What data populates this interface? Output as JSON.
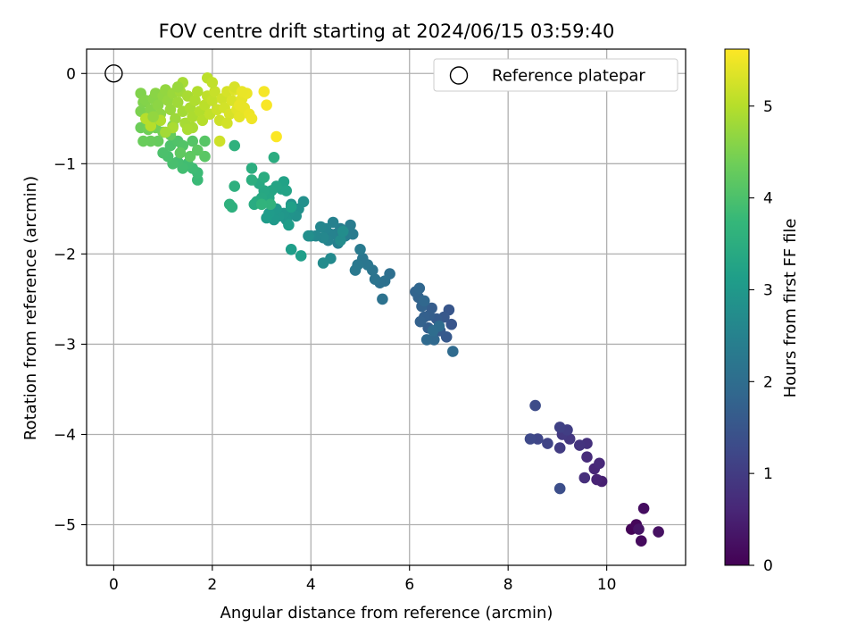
{
  "chart_data": {
    "type": "scatter",
    "title": "FOV centre drift starting at 2024/06/15 03:59:40",
    "xlabel": "Angular distance from reference (arcmin)",
    "ylabel": "Rotation from reference (arcmin)",
    "xlim": [
      -0.55,
      11.6
    ],
    "ylim": [
      -5.45,
      0.27
    ],
    "xticks": [
      0,
      2,
      4,
      6,
      8,
      10
    ],
    "yticks": [
      0,
      -1,
      -2,
      -3,
      -4,
      -5
    ],
    "x_tick_labels": [
      "0",
      "2",
      "4",
      "6",
      "8",
      "10"
    ],
    "y_tick_labels": [
      "0",
      "−1",
      "−2",
      "−3",
      "−4",
      "−5"
    ],
    "grid": true,
    "legend": {
      "placement": "top-right",
      "entries": [
        "Reference platepar"
      ]
    },
    "reference_point": {
      "x": 0,
      "y": 0
    },
    "colorbar": {
      "label": "Hours from first FF file",
      "colormap": "viridis",
      "range": [
        0,
        5.62
      ],
      "ticks": [
        0,
        1,
        2,
        3,
        4,
        5
      ],
      "tick_labels": [
        "0",
        "1",
        "2",
        "3",
        "4",
        "5"
      ]
    },
    "colormap_stops": [
      "#440154",
      "#482878",
      "#3e4989",
      "#31688e",
      "#26828e",
      "#1f9e89",
      "#35b779",
      "#6ece58",
      "#b5de2b",
      "#fde725"
    ],
    "points": [
      [
        10.5,
        -5.05,
        0.05
      ],
      [
        10.6,
        -5.0,
        0.1
      ],
      [
        10.7,
        -5.18,
        0.15
      ],
      [
        10.75,
        -4.82,
        0.2
      ],
      [
        11.05,
        -5.08,
        0.25
      ],
      [
        10.65,
        -5.05,
        0.3
      ],
      [
        9.9,
        -4.52,
        0.5
      ],
      [
        9.8,
        -4.5,
        0.55
      ],
      [
        9.75,
        -4.38,
        0.6
      ],
      [
        9.85,
        -4.32,
        0.65
      ],
      [
        9.6,
        -4.25,
        0.7
      ],
      [
        9.55,
        -4.48,
        0.75
      ],
      [
        9.6,
        -4.1,
        0.8
      ],
      [
        9.45,
        -4.12,
        0.85
      ],
      [
        9.25,
        -4.05,
        0.9
      ],
      [
        9.1,
        -4.0,
        0.95
      ],
      [
        9.05,
        -4.15,
        1.0
      ],
      [
        9.2,
        -3.95,
        1.05
      ],
      [
        9.05,
        -3.92,
        1.1
      ],
      [
        8.8,
        -4.1,
        1.15
      ],
      [
        8.6,
        -4.05,
        1.2
      ],
      [
        8.45,
        -4.05,
        1.25
      ],
      [
        8.55,
        -3.68,
        1.3
      ],
      [
        9.05,
        -4.6,
        1.35
      ],
      [
        6.85,
        -2.78,
        1.5
      ],
      [
        6.8,
        -2.62,
        1.52
      ],
      [
        6.7,
        -2.7,
        1.55
      ],
      [
        6.75,
        -2.92,
        1.58
      ],
      [
        6.62,
        -2.85,
        1.6
      ],
      [
        6.55,
        -2.72,
        1.62
      ],
      [
        6.45,
        -2.6,
        1.65
      ],
      [
        6.4,
        -2.68,
        1.68
      ],
      [
        6.38,
        -2.82,
        1.7
      ],
      [
        6.3,
        -2.7,
        1.72
      ],
      [
        6.22,
        -2.75,
        1.75
      ],
      [
        6.25,
        -2.58,
        1.78
      ],
      [
        6.18,
        -2.48,
        1.8
      ],
      [
        6.12,
        -2.42,
        1.82
      ],
      [
        6.2,
        -2.38,
        1.85
      ],
      [
        6.3,
        -2.52,
        1.88
      ],
      [
        6.5,
        -2.95,
        1.9
      ],
      [
        6.35,
        -2.95,
        1.92
      ],
      [
        6.88,
        -3.08,
        1.95
      ],
      [
        6.6,
        -2.8,
        1.98
      ],
      [
        6.48,
        -2.85,
        2.0
      ],
      [
        5.6,
        -2.22,
        2.05
      ],
      [
        5.5,
        -2.3,
        2.08
      ],
      [
        5.4,
        -2.32,
        2.1
      ],
      [
        5.45,
        -2.5,
        2.12
      ],
      [
        5.3,
        -2.28,
        2.15
      ],
      [
        5.25,
        -2.18,
        2.18
      ],
      [
        5.15,
        -2.12,
        2.2
      ],
      [
        5.05,
        -2.05,
        2.22
      ],
      [
        4.95,
        -2.12,
        2.25
      ],
      [
        4.9,
        -2.18,
        2.28
      ],
      [
        5.0,
        -1.95,
        2.3
      ],
      [
        4.85,
        -1.78,
        2.32
      ],
      [
        4.8,
        -1.68,
        2.35
      ],
      [
        4.7,
        -1.8,
        2.38
      ],
      [
        4.6,
        -1.72,
        2.4
      ],
      [
        4.55,
        -1.88,
        2.42
      ],
      [
        4.5,
        -1.78,
        2.45
      ],
      [
        4.45,
        -1.65,
        2.48
      ],
      [
        4.4,
        -1.78,
        2.5
      ],
      [
        4.35,
        -1.85,
        2.52
      ],
      [
        4.3,
        -1.72,
        2.55
      ],
      [
        4.2,
        -1.7,
        2.58
      ],
      [
        4.25,
        -1.82,
        2.6
      ],
      [
        4.1,
        -1.8,
        2.62
      ],
      [
        4.0,
        -1.8,
        2.65
      ],
      [
        4.4,
        -2.05,
        2.68
      ],
      [
        4.25,
        -2.1,
        2.7
      ],
      [
        4.6,
        -1.85,
        2.72
      ],
      [
        4.65,
        -1.75,
        2.75
      ],
      [
        3.95,
        -1.8,
        2.78
      ],
      [
        3.85,
        -1.42,
        2.8
      ],
      [
        3.75,
        -1.5,
        2.82
      ],
      [
        3.7,
        -1.58,
        2.85
      ],
      [
        3.6,
        -1.45,
        2.88
      ],
      [
        3.55,
        -1.55,
        2.9
      ],
      [
        3.5,
        -1.62,
        2.92
      ],
      [
        3.45,
        -1.55,
        2.95
      ],
      [
        3.35,
        -1.58,
        2.98
      ],
      [
        3.3,
        -1.5,
        3.0
      ],
      [
        3.25,
        -1.62,
        3.02
      ],
      [
        3.15,
        -1.55,
        3.05
      ],
      [
        3.1,
        -1.6,
        3.08
      ],
      [
        3.55,
        -1.68,
        3.1
      ],
      [
        3.6,
        -1.95,
        3.12
      ],
      [
        3.8,
        -2.02,
        3.14
      ],
      [
        3.6,
        -1.48,
        3.16
      ],
      [
        3.4,
        -1.28,
        3.2
      ],
      [
        3.45,
        -1.2,
        3.22
      ],
      [
        3.5,
        -1.3,
        3.25
      ],
      [
        3.3,
        -1.25,
        3.28
      ],
      [
        3.2,
        -1.3,
        3.3
      ],
      [
        3.15,
        -1.38,
        3.32
      ],
      [
        3.05,
        -1.3,
        3.35
      ],
      [
        3.0,
        -1.38,
        3.38
      ],
      [
        2.95,
        -1.22,
        3.4
      ],
      [
        2.9,
        -1.42,
        3.42
      ],
      [
        2.85,
        -1.45,
        3.44
      ],
      [
        3.05,
        -1.15,
        3.46
      ],
      [
        3.25,
        -0.93,
        3.48
      ],
      [
        2.8,
        -1.05,
        3.5
      ],
      [
        2.8,
        -1.18,
        3.52
      ],
      [
        2.45,
        -1.25,
        3.54
      ],
      [
        2.4,
        -1.48,
        3.56
      ],
      [
        2.35,
        -1.45,
        3.58
      ],
      [
        2.45,
        -0.8,
        3.6
      ],
      [
        3.18,
        -1.45,
        3.62
      ],
      [
        3.0,
        -1.45,
        3.64
      ],
      [
        1.7,
        -1.18,
        3.8
      ],
      [
        1.7,
        -1.1,
        3.82
      ],
      [
        1.6,
        -1.05,
        3.85
      ],
      [
        1.5,
        -1.0,
        3.88
      ],
      [
        1.4,
        -1.05,
        3.9
      ],
      [
        1.3,
        -0.98,
        3.92
      ],
      [
        1.2,
        -1.0,
        3.95
      ],
      [
        1.1,
        -0.92,
        3.98
      ],
      [
        1.0,
        -0.88,
        4.0
      ],
      [
        1.15,
        -0.8,
        4.02
      ],
      [
        1.3,
        -0.75,
        4.05
      ],
      [
        1.4,
        -0.8,
        4.08
      ],
      [
        1.6,
        -0.75,
        4.1
      ],
      [
        1.85,
        -0.75,
        4.12
      ],
      [
        1.85,
        -0.92,
        4.15
      ],
      [
        1.7,
        -0.85,
        4.18
      ],
      [
        1.55,
        -0.92,
        4.2
      ],
      [
        1.35,
        -0.88,
        4.22
      ],
      [
        1.15,
        -0.68,
        4.25
      ],
      [
        0.9,
        -0.75,
        4.28
      ],
      [
        0.75,
        -0.75,
        4.3
      ],
      [
        0.6,
        -0.75,
        4.32
      ],
      [
        0.55,
        -0.6,
        4.35
      ],
      [
        0.7,
        -0.62,
        4.38
      ],
      [
        0.85,
        -0.6,
        4.4
      ],
      [
        1.0,
        -0.65,
        4.42
      ],
      [
        1.2,
        -0.58,
        4.44
      ],
      [
        0.55,
        -0.42,
        4.5
      ],
      [
        0.6,
        -0.32,
        4.52
      ],
      [
        0.55,
        -0.22,
        4.54
      ],
      [
        0.65,
        -0.3,
        4.56
      ],
      [
        0.75,
        -0.4,
        4.58
      ],
      [
        0.8,
        -0.28,
        4.6
      ],
      [
        0.85,
        -0.22,
        4.62
      ],
      [
        0.9,
        -0.35,
        4.64
      ],
      [
        0.95,
        -0.45,
        4.66
      ],
      [
        1.0,
        -0.25,
        4.68
      ],
      [
        1.05,
        -0.18,
        4.7
      ],
      [
        1.1,
        -0.3,
        4.72
      ],
      [
        1.15,
        -0.4,
        4.74
      ],
      [
        1.2,
        -0.22,
        4.76
      ],
      [
        1.25,
        -0.5,
        4.78
      ],
      [
        1.3,
        -0.32,
        4.8
      ],
      [
        1.35,
        -0.2,
        4.82
      ],
      [
        1.4,
        -0.42,
        4.84
      ],
      [
        1.45,
        -0.55,
        4.86
      ],
      [
        1.5,
        -0.25,
        4.88
      ],
      [
        1.55,
        -0.38,
        4.9
      ],
      [
        1.6,
        -0.48,
        4.92
      ],
      [
        1.65,
        -0.3,
        4.94
      ],
      [
        1.7,
        -0.2,
        4.96
      ],
      [
        1.75,
        -0.42,
        4.98
      ],
      [
        1.8,
        -0.52,
        5.0
      ],
      [
        0.65,
        -0.5,
        5.0
      ],
      [
        0.75,
        -0.58,
        5.0
      ],
      [
        0.95,
        -0.52,
        4.95
      ],
      [
        1.2,
        -0.6,
        4.9
      ],
      [
        1.4,
        -0.1,
        4.86
      ],
      [
        1.05,
        -0.65,
        4.84
      ],
      [
        1.6,
        -0.6,
        4.88
      ],
      [
        0.8,
        -0.48,
        4.7
      ],
      [
        1.3,
        -0.15,
        4.75
      ],
      [
        1.5,
        -0.62,
        4.9
      ],
      [
        1.85,
        -0.35,
        5.05
      ],
      [
        1.9,
        -0.25,
        5.08
      ],
      [
        1.95,
        -0.45,
        5.1
      ],
      [
        2.0,
        -0.3,
        5.12
      ],
      [
        2.05,
        -0.2,
        5.15
      ],
      [
        2.1,
        -0.4,
        5.18
      ],
      [
        2.15,
        -0.52,
        5.2
      ],
      [
        2.2,
        -0.28,
        5.22
      ],
      [
        2.25,
        -0.38,
        5.25
      ],
      [
        2.3,
        -0.2,
        5.28
      ],
      [
        2.35,
        -0.45,
        5.3
      ],
      [
        2.4,
        -0.3,
        5.32
      ],
      [
        2.45,
        -0.18,
        5.35
      ],
      [
        2.5,
        -0.4,
        5.38
      ],
      [
        2.55,
        -0.48,
        5.4
      ],
      [
        2.6,
        -0.28,
        5.42
      ],
      [
        2.65,
        -0.38,
        5.44
      ],
      [
        2.7,
        -0.22,
        5.46
      ],
      [
        2.75,
        -0.45,
        5.48
      ],
      [
        2.8,
        -0.5,
        5.5
      ],
      [
        2.45,
        -0.15,
        5.3
      ],
      [
        2.3,
        -0.55,
        5.25
      ],
      [
        2.6,
        -0.2,
        5.45
      ],
      [
        1.9,
        -0.05,
        5.05
      ],
      [
        3.05,
        -0.2,
        5.55
      ],
      [
        3.1,
        -0.35,
        5.58
      ],
      [
        3.3,
        -0.7,
        5.6
      ],
      [
        2.15,
        -0.75,
        5.2
      ],
      [
        2.0,
        -0.1,
        5.1
      ],
      [
        2.55,
        -0.35,
        5.44
      ]
    ]
  }
}
